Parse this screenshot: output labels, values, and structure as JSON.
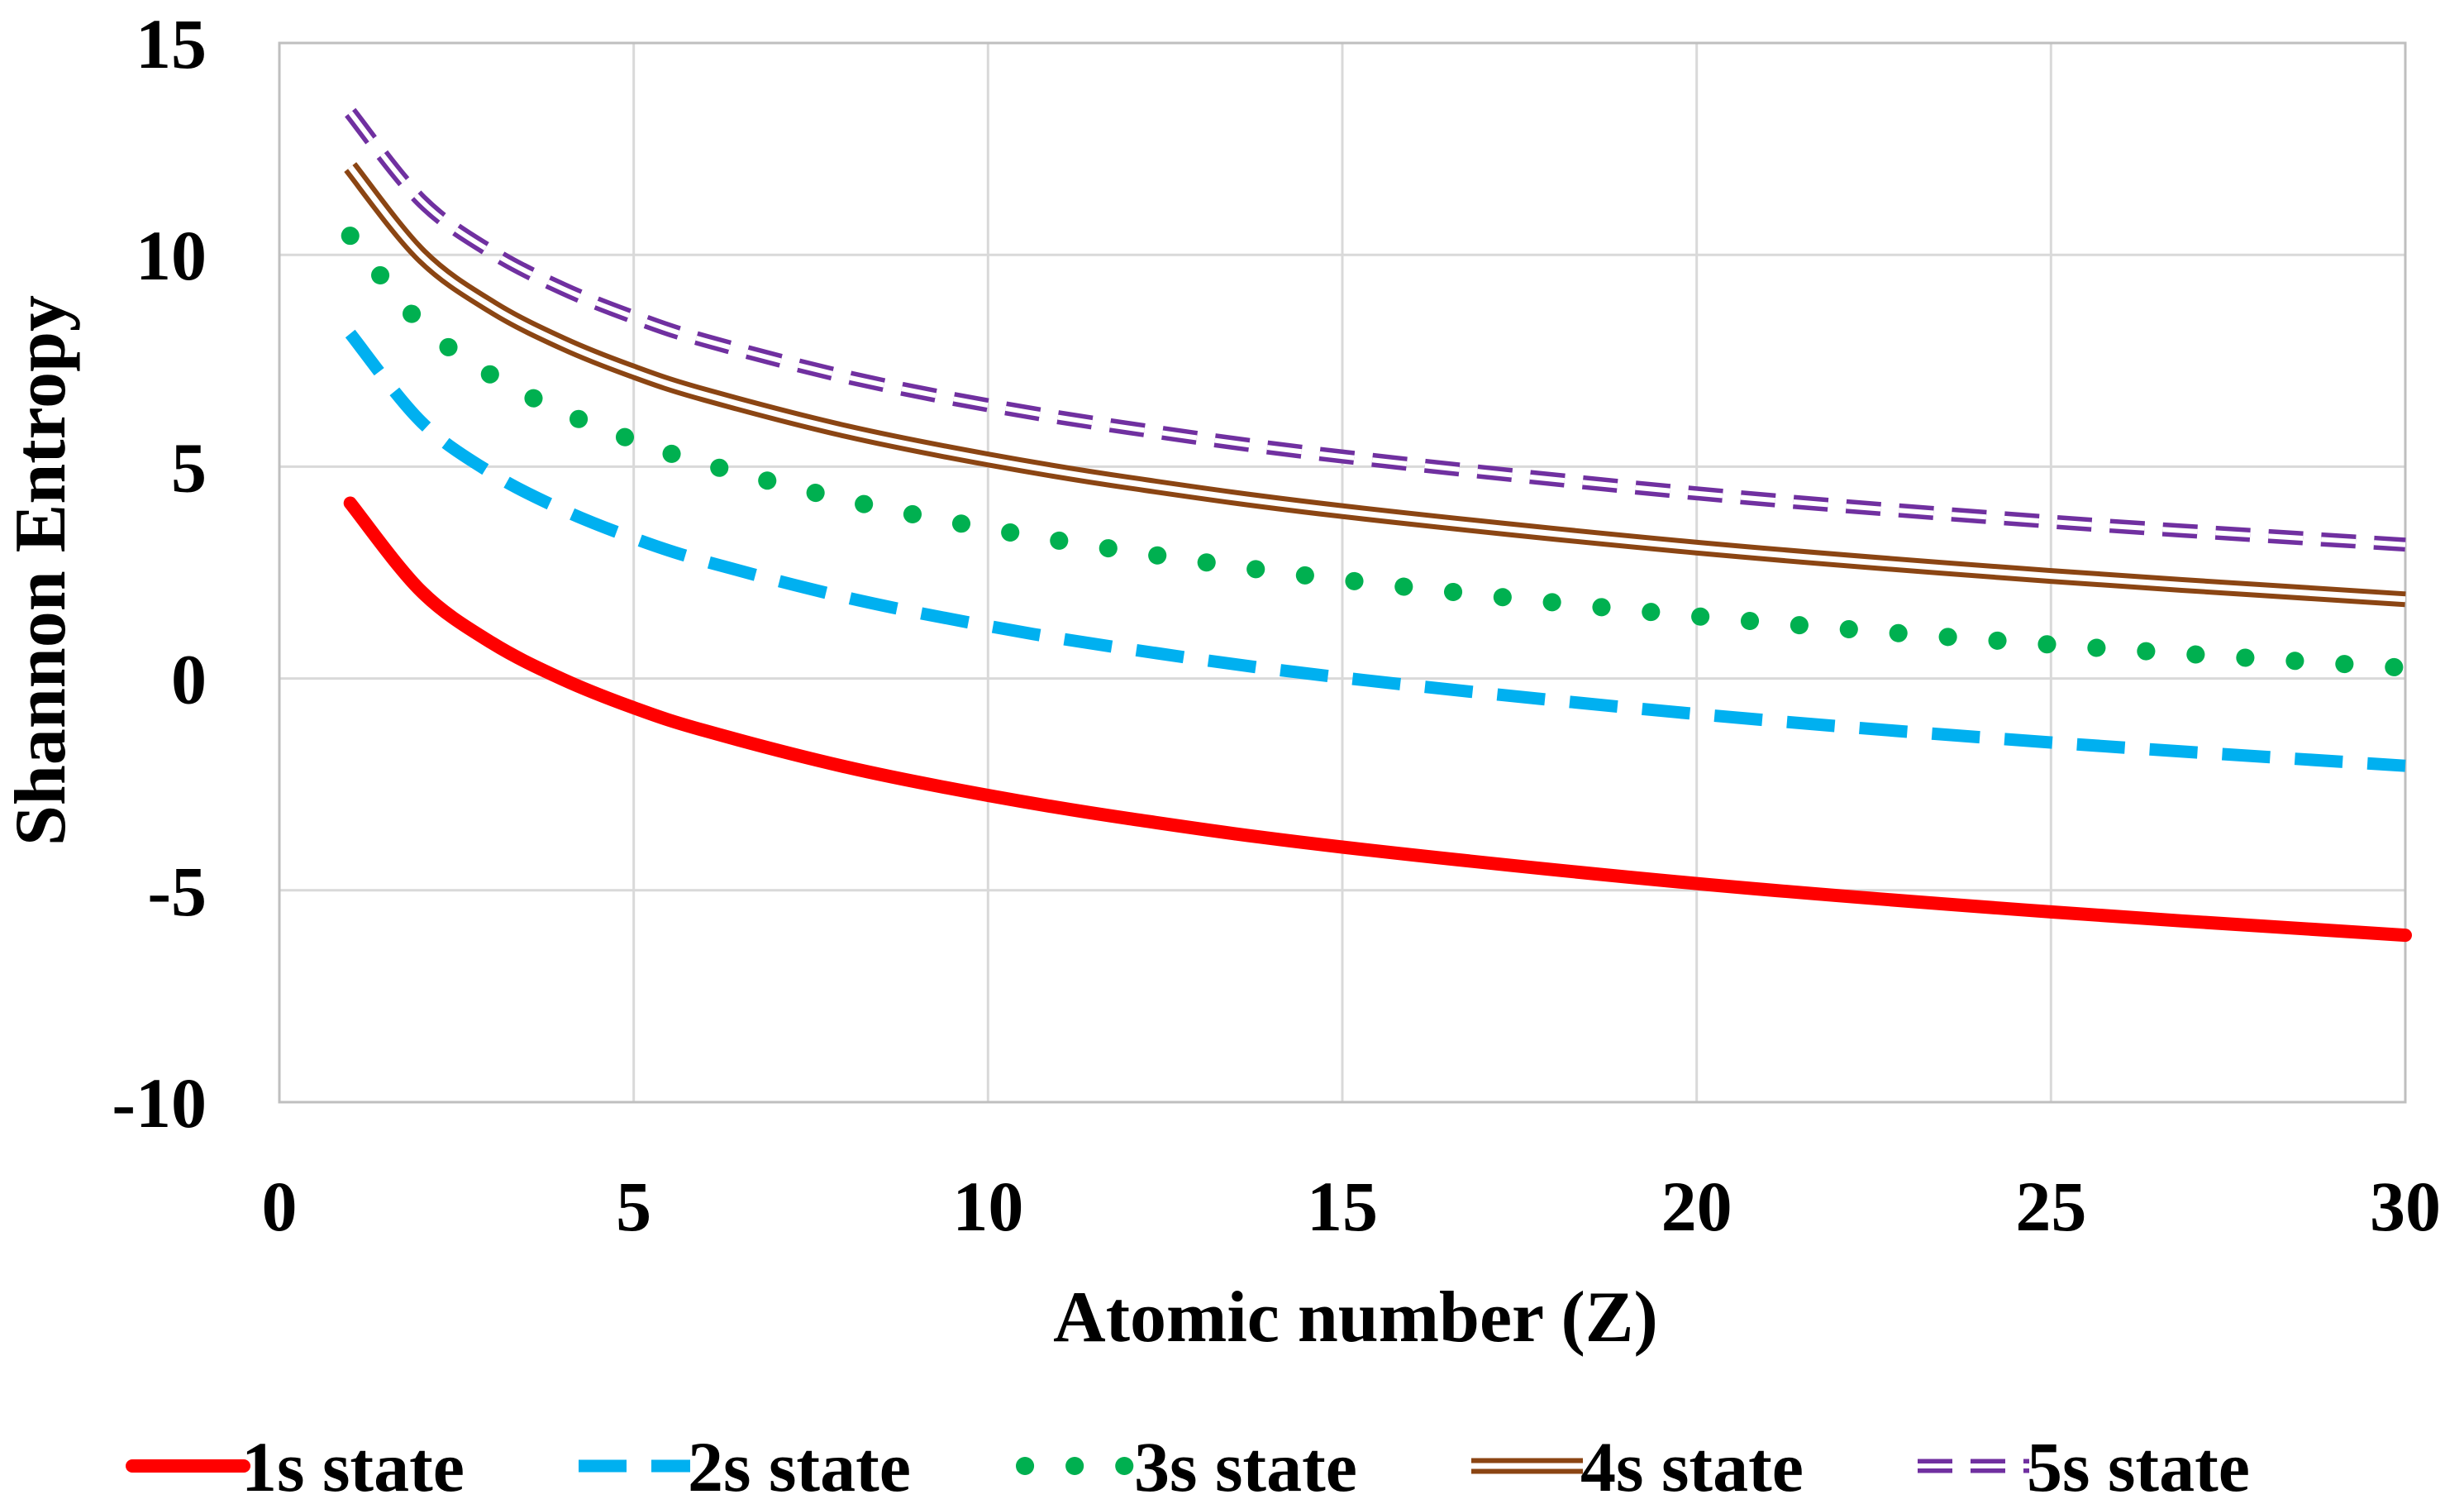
{
  "chart_data": {
    "type": "line",
    "title": "",
    "xlabel": "Atomic number (Z)",
    "ylabel": "Shannon Entropy",
    "xlim": [
      0,
      30
    ],
    "ylim": [
      -10,
      15
    ],
    "xticks": [
      "0",
      "5",
      "10",
      "15",
      "20",
      "25",
      "30"
    ],
    "yticks": [
      "15",
      "10",
      "5",
      "0",
      "-5",
      "-10"
    ],
    "grid": true,
    "legend_position": "bottom",
    "x": [
      1,
      2,
      3,
      4,
      5,
      6,
      8,
      10,
      12,
      15,
      20,
      25,
      30
    ],
    "series": [
      {
        "name": "1s state",
        "color": "#ff0000",
        "style": "solid",
        "values": [
          4.14,
          2.06,
          0.84,
          -0.02,
          -0.69,
          -1.23,
          -2.09,
          -2.76,
          -3.31,
          -3.98,
          -4.84,
          -5.51,
          -6.06
        ]
      },
      {
        "name": "2s state",
        "color": "#00b0f0",
        "style": "dashed",
        "values": [
          8.14,
          6.06,
          4.84,
          3.98,
          3.31,
          2.77,
          1.91,
          1.24,
          0.69,
          0.02,
          -0.84,
          -1.51,
          -2.06
        ]
      },
      {
        "name": "3s state",
        "color": "#00b050",
        "style": "dotted",
        "values": [
          10.45,
          8.37,
          7.15,
          6.29,
          5.62,
          5.07,
          4.21,
          3.54,
          3.0,
          2.33,
          1.47,
          0.8,
          0.25
        ]
      },
      {
        "name": "4s state",
        "color": "#8b4513",
        "style": "double",
        "values": [
          12.07,
          9.99,
          8.77,
          7.91,
          7.24,
          6.7,
          5.84,
          5.17,
          4.62,
          3.95,
          3.09,
          2.42,
          1.87
        ]
      },
      {
        "name": "5s state",
        "color": "#7030a0",
        "style": "double-dashed",
        "values": [
          13.36,
          11.28,
          10.06,
          9.2,
          8.53,
          7.98,
          7.12,
          6.45,
          5.91,
          5.24,
          4.37,
          3.7,
          3.16
        ]
      }
    ]
  }
}
